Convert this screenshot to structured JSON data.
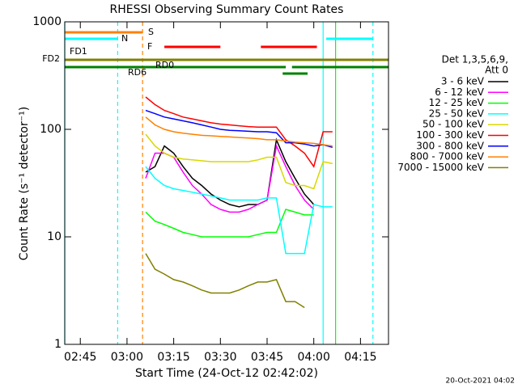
{
  "chart_data": {
    "type": "line",
    "title": "RHESSI Observing Summary Count Rates",
    "xlabel": "Start Time (24-Oct-12 02:42:02)",
    "ylabel": "Count Rate (s⁻¹ detector⁻¹)",
    "footer": "20-Oct-2021 04:02",
    "legend_header": [
      "Det 1,3,5,6,9,",
      "Att 0"
    ],
    "ylog": true,
    "xlim": [
      "02:40",
      "04:24"
    ],
    "xticks": [
      "02:45",
      "03:00",
      "03:15",
      "03:30",
      "03:45",
      "04:00",
      "04:15"
    ],
    "ylim": [
      1,
      1000
    ],
    "yticks": [
      1,
      10,
      100,
      1000
    ],
    "x": [
      "03:06",
      "03:09",
      "03:12",
      "03:15",
      "03:18",
      "03:21",
      "03:24",
      "03:27",
      "03:30",
      "03:33",
      "03:36",
      "03:39",
      "03:42",
      "03:45",
      "03:48",
      "03:51",
      "03:54",
      "03:57",
      "04:00",
      "04:03",
      "04:06"
    ],
    "series": [
      {
        "name": "3 - 6 keV",
        "color": "#000000",
        "values": [
          40,
          45,
          70,
          60,
          45,
          35,
          30,
          25,
          22,
          20,
          19,
          20,
          20,
          22,
          80,
          50,
          35,
          25,
          20,
          null,
          null
        ]
      },
      {
        "name": "6 - 12 keV",
        "color": "#ff00ff",
        "values": [
          35,
          60,
          60,
          55,
          40,
          30,
          25,
          20,
          18,
          17,
          17,
          18,
          20,
          22,
          70,
          45,
          30,
          22,
          18,
          null,
          null
        ]
      },
      {
        "name": "12 - 25 keV",
        "color": "#00ff00",
        "values": [
          17,
          14,
          13,
          12,
          11,
          10.5,
          10,
          10,
          10,
          10,
          10,
          10,
          10.5,
          11,
          11,
          18,
          17,
          16,
          16,
          null,
          null
        ]
      },
      {
        "name": "25 - 50 keV",
        "color": "#00ffff",
        "values": [
          45,
          35,
          30,
          28,
          27,
          26,
          25,
          24,
          23,
          22,
          22,
          22,
          22,
          23,
          23,
          7,
          7,
          7,
          20,
          19,
          19
        ]
      },
      {
        "name": "50 - 100 keV",
        "color": "#d8d800",
        "values": [
          90,
          70,
          60,
          55,
          53,
          52,
          51,
          50,
          50,
          50,
          50,
          50,
          52,
          55,
          55,
          32,
          30,
          30,
          28,
          50,
          48
        ]
      },
      {
        "name": "100 - 300 keV",
        "color": "#ff0000",
        "values": [
          200,
          170,
          150,
          140,
          130,
          125,
          120,
          115,
          112,
          110,
          108,
          106,
          105,
          105,
          105,
          80,
          70,
          60,
          45,
          95,
          95
        ]
      },
      {
        "name": "300 - 800 keV",
        "color": "#0000ff",
        "values": [
          150,
          140,
          130,
          125,
          120,
          115,
          110,
          105,
          100,
          98,
          97,
          96,
          95,
          95,
          93,
          75,
          75,
          73,
          70,
          72,
          68
        ]
      },
      {
        "name": "800 - 7000 keV",
        "color": "#ff8000",
        "values": [
          130,
          110,
          100,
          95,
          92,
          90,
          88,
          87,
          86,
          85,
          84,
          83,
          82,
          80,
          80,
          78,
          76,
          75,
          74,
          72,
          70
        ]
      },
      {
        "name": "7000 - 15000 keV",
        "color": "#808000",
        "values": [
          7,
          5,
          4.5,
          4,
          3.8,
          3.5,
          3.2,
          3,
          3,
          3,
          3.2,
          3.5,
          3.8,
          3.8,
          4,
          2.5,
          2.5,
          2.2,
          null,
          null,
          null
        ]
      }
    ],
    "flags": [
      {
        "label": "S",
        "color": "#ff8000",
        "segments": [
          [
            "02:40",
            "03:05"
          ]
        ]
      },
      {
        "label": "N",
        "color": "#00ffff",
        "segments": [
          [
            "02:40",
            "02:57"
          ],
          [
            "04:04",
            "04:19"
          ]
        ]
      },
      {
        "label": "F",
        "color": "#ff0000",
        "segments": [
          [
            "03:12",
            "03:30"
          ],
          [
            "03:43",
            "04:01"
          ]
        ]
      },
      {
        "label": "FD1",
        "color": "#808000",
        "segments": []
      },
      {
        "label": "FD2",
        "color": "#808000",
        "segments": [
          [
            "02:40",
            "04:24"
          ]
        ]
      },
      {
        "label": "RD0",
        "color": "#008000",
        "segments": [
          [
            "02:40",
            "03:51"
          ],
          [
            "03:53",
            "04:24"
          ]
        ]
      },
      {
        "label": "RD6",
        "color": "#008000",
        "segments": [
          [
            "03:50",
            "03:58"
          ]
        ]
      }
    ],
    "markers": [
      {
        "time": "02:40",
        "color": "#00ffff",
        "dashed": false
      },
      {
        "time": "02:57",
        "color": "#00ffff",
        "dashed": true
      },
      {
        "time": "03:05",
        "color": "#ff8000",
        "dashed": true
      },
      {
        "time": "04:03",
        "color": "#00ffff",
        "dashed": false
      },
      {
        "time": "04:07",
        "color": "#00ff00",
        "dashed": false
      },
      {
        "time": "04:19",
        "color": "#00ffff",
        "dashed": true
      }
    ]
  }
}
